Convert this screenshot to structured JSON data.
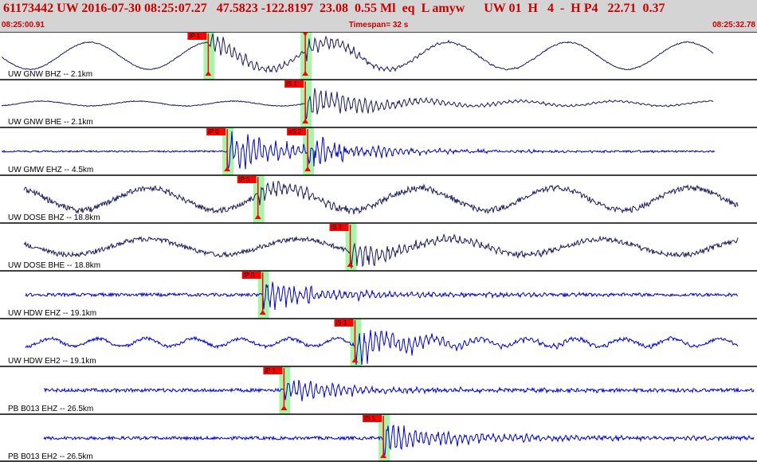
{
  "header": {
    "title": "61173442 UW 2016-07-30 08:25:07.27   47.5823 -122.8197  23.08  0.55 Ml  eq  L amyw      UW 01  H   4  -  H P4   22.71  0.37",
    "start_time": "08:25:00.91",
    "timespan": "Timespan=  32 s",
    "end_time": "08:25:32.78"
  },
  "colors": {
    "header_bg": "#d4d4d4",
    "header_text": "#c80000",
    "trace_bh": "#1a1a5e",
    "trace_eh": "#0000cc",
    "pick": "#ff0000",
    "window": "#8ef08e"
  },
  "channels": [
    {
      "label": "UW GNW BHZ -- 2.1km",
      "kind": "bh",
      "picks": [
        {
          "label": "iP 1",
          "t": 8.8
        },
        {
          "label": "",
          "t": 12.9
        }
      ]
    },
    {
      "label": "UW GNW BHE -- 2.1km",
      "kind": "bh",
      "picks": [
        {
          "label": "iS 1",
          "t": 12.9
        }
      ]
    },
    {
      "label": "UW GMW EHZ -- 4.5km",
      "kind": "eh",
      "picks": [
        {
          "label": "iP 0",
          "t": 9.6
        },
        {
          "label": "eS 2",
          "t": 13.0
        }
      ]
    },
    {
      "label": "UW DOSE BHZ -- 18.8km",
      "kind": "bh",
      "picks": [
        {
          "label": "iP 0",
          "t": 10.9
        }
      ]
    },
    {
      "label": "UW DOSE BHE -- 18.8km",
      "kind": "bh",
      "picks": [
        {
          "label": "iS 1",
          "t": 14.8
        }
      ]
    },
    {
      "label": "UW HDW EHZ -- 19.1km",
      "kind": "eh",
      "picks": [
        {
          "label": "iP 0",
          "t": 11.1
        }
      ]
    },
    {
      "label": "UW HDW EH2 -- 19.1km",
      "kind": "eh",
      "picks": [
        {
          "label": "iS 1",
          "t": 15.0
        }
      ]
    },
    {
      "label": "PB B013 EHZ -- 26.5km",
      "kind": "eh",
      "picks": [
        {
          "label": "iP 1",
          "t": 12.0
        }
      ]
    },
    {
      "label": "PB B013 EH2 -- 26.5km",
      "kind": "eh",
      "picks": [
        {
          "label": "iS 1",
          "t": 16.2
        }
      ]
    }
  ]
}
